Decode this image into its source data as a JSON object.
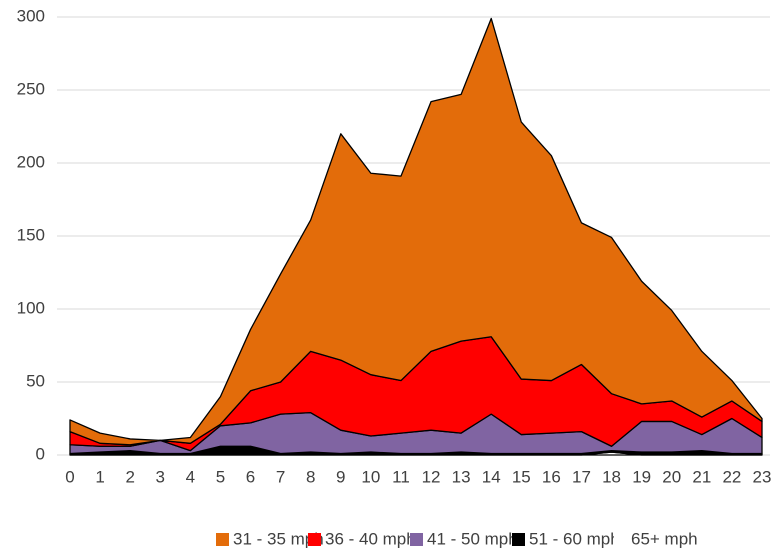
{
  "chart_data": {
    "type": "stacked_area",
    "categories": [
      "0",
      "1",
      "2",
      "3",
      "4",
      "5",
      "6",
      "7",
      "8",
      "9",
      "10",
      "11",
      "12",
      "13",
      "14",
      "15",
      "16",
      "17",
      "18",
      "19",
      "20",
      "21",
      "22",
      "23"
    ],
    "series": [
      {
        "name": "31 - 35 mph",
        "color": "#e36c0a",
        "values": [
          8,
          7,
          4,
          0,
          4,
          19,
          42,
          74,
          90,
          155,
          138,
          140,
          171,
          169,
          218,
          176,
          154,
          97,
          107,
          84,
          62,
          45,
          14,
          2
        ]
      },
      {
        "name": "36 - 40 mph",
        "color": "#ff0000",
        "values": [
          9,
          2,
          1,
          0,
          5,
          1,
          22,
          22,
          42,
          48,
          42,
          36,
          54,
          63,
          53,
          38,
          36,
          46,
          36,
          12,
          14,
          12,
          12,
          11
        ]
      },
      {
        "name": "41 - 50 mph",
        "color": "#8064a2",
        "values": [
          6,
          4,
          3,
          9,
          2,
          14,
          16,
          27,
          27,
          16,
          11,
          14,
          16,
          13,
          27,
          13,
          14,
          15,
          3,
          21,
          21,
          11,
          24,
          11
        ]
      },
      {
        "name": "51 - 60 mph",
        "color": "#000000",
        "values": [
          1,
          2,
          3,
          1,
          1,
          6,
          6,
          1,
          2,
          1,
          2,
          1,
          1,
          2,
          1,
          1,
          1,
          1,
          1,
          2,
          2,
          3,
          1,
          1
        ]
      },
      {
        "name": "65+ mph",
        "color": "#ffffff",
        "values": [
          0,
          0,
          0,
          0,
          0,
          0,
          0,
          0,
          0,
          0,
          0,
          0,
          0,
          0,
          0,
          0,
          0,
          0,
          2,
          0,
          0,
          0,
          0,
          0
        ]
      }
    ],
    "ylim": [
      0,
      300
    ],
    "yticks": [
      0,
      50,
      100,
      150,
      200,
      250,
      300
    ],
    "grid": true,
    "legend": "bottom"
  }
}
